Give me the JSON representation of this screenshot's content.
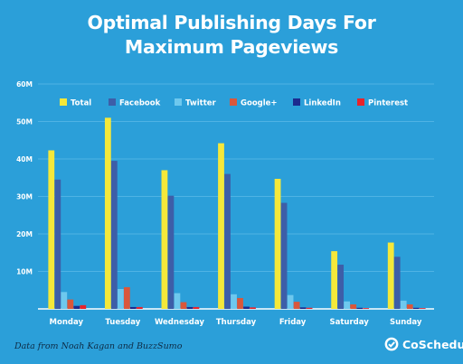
{
  "chart_data": {
    "type": "bar",
    "title": [
      "Optimal Publishing Days For",
      "Maximum Pageviews"
    ],
    "categories": [
      "Monday",
      "Tuesday",
      "Wednesday",
      "Thursday",
      "Friday",
      "Saturday",
      "Sunday"
    ],
    "y_ticks": [
      "",
      "10M",
      "20M",
      "30M",
      "40M",
      "50M",
      "60M"
    ],
    "ylim": [
      0,
      60
    ],
    "y_unit": "M",
    "grid": true,
    "legend_position": "top",
    "series": [
      {
        "name": "Total",
        "color": "#f5e83a",
        "values": [
          42.3,
          51.0,
          37.0,
          44.2,
          34.7,
          15.4,
          17.7
        ]
      },
      {
        "name": "Facebook",
        "color": "#3d5ea8",
        "values": [
          34.5,
          39.5,
          30.2,
          36.0,
          28.3,
          11.8,
          13.9
        ]
      },
      {
        "name": "Twitter",
        "color": "#6ec8ee",
        "values": [
          4.5,
          5.3,
          4.2,
          3.9,
          3.7,
          2.0,
          2.2
        ]
      },
      {
        "name": "Google+",
        "color": "#d9573b",
        "values": [
          2.5,
          5.8,
          1.8,
          2.9,
          1.9,
          1.2,
          1.2
        ]
      },
      {
        "name": "LinkedIn",
        "color": "#1c2b8f",
        "values": [
          0.8,
          0.5,
          0.5,
          0.6,
          0.4,
          0.3,
          0.3
        ]
      },
      {
        "name": "Pinterest",
        "color": "#e8232b",
        "values": [
          1.0,
          0.5,
          0.5,
          0.4,
          0.3,
          0.2,
          0.2
        ]
      }
    ]
  },
  "footer": {
    "credit": "Data from Noah Kagan and BuzzSumo",
    "brand": "CoSchedule",
    "brand_icon": "coschedule-logo-icon"
  }
}
